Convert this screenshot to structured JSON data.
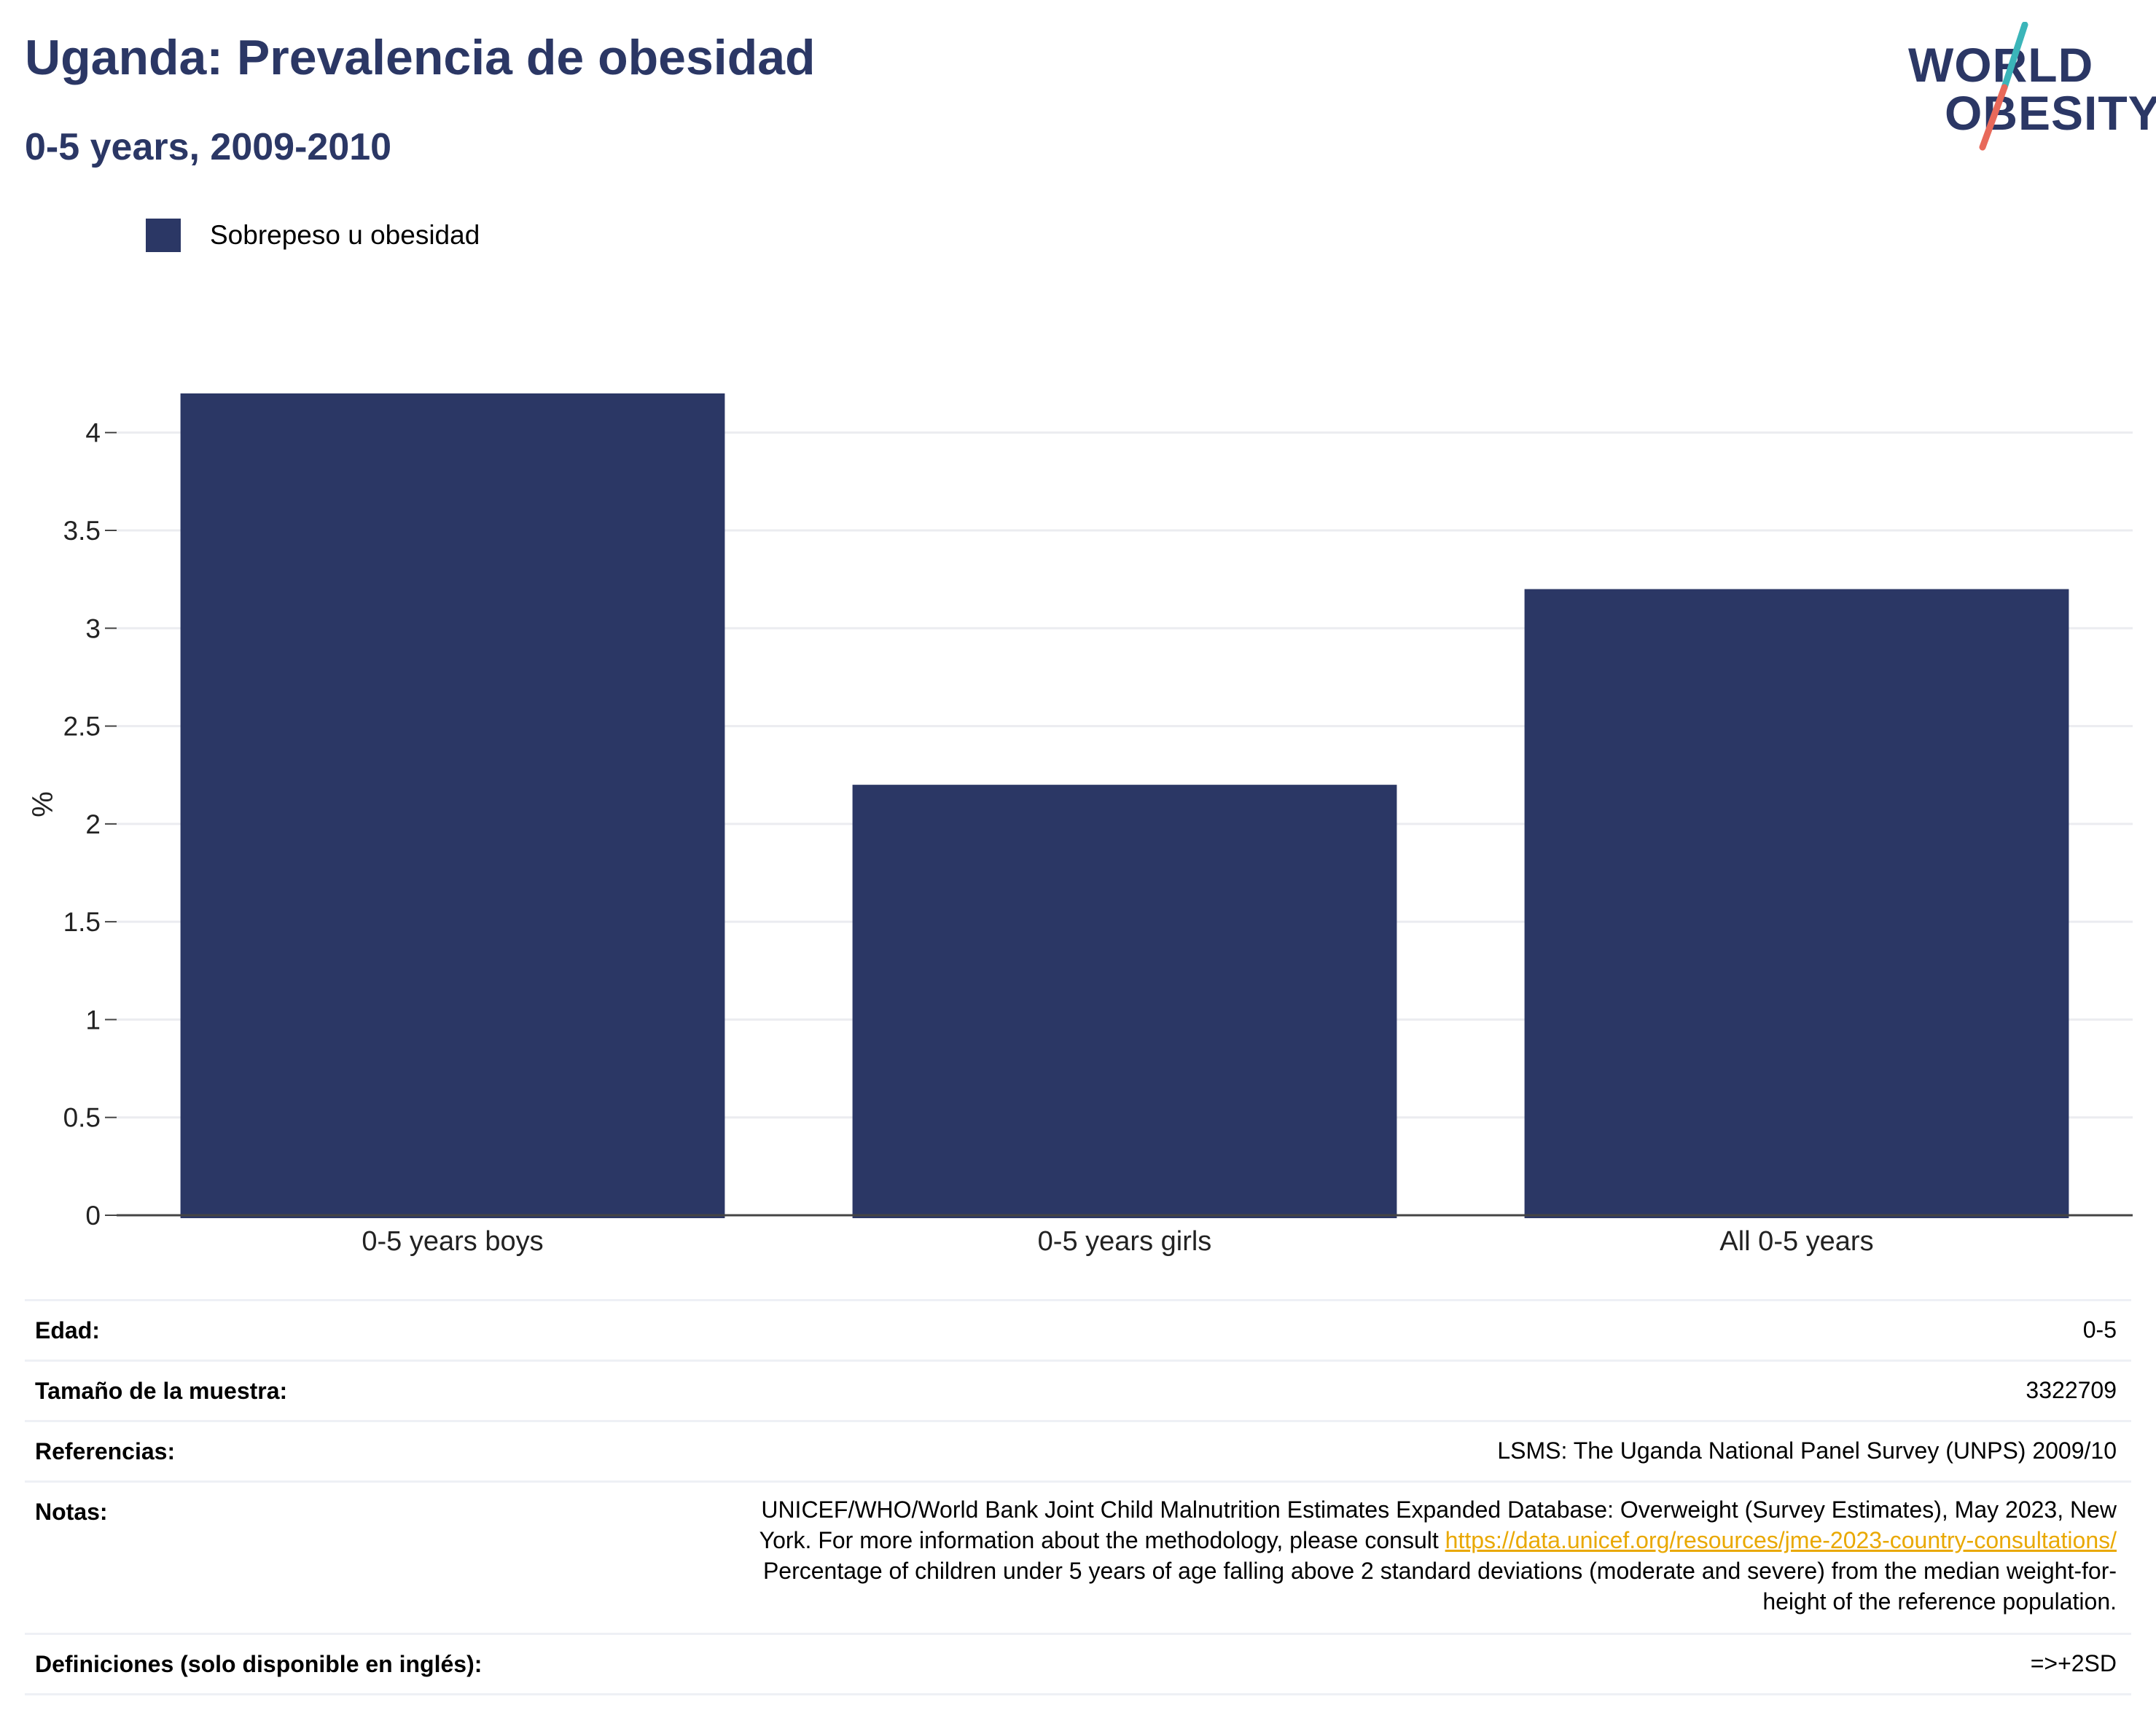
{
  "header": {
    "title": "Uganda: Prevalencia de obesidad",
    "subtitle": "0-5 years, 2009-2010"
  },
  "logo": {
    "line1": "WORLD",
    "line2": "OBESITY",
    "slash_colors": [
      "#3bb5b9",
      "#e8695a"
    ]
  },
  "legend": {
    "items": [
      {
        "label": "Sobrepeso u obesidad",
        "color": "#2b3765"
      }
    ]
  },
  "chart_data": {
    "type": "bar",
    "categories": [
      "0-5 years boys",
      "0-5 years girls",
      "All 0-5 years"
    ],
    "series": [
      {
        "name": "Sobrepeso u obesidad",
        "values": [
          4.2,
          2.2,
          3.2
        ],
        "color": "#2b3765"
      }
    ],
    "ylabel": "%",
    "xlabel": "",
    "ylim": [
      0,
      4.2
    ],
    "yticks": [
      0,
      0.5,
      1,
      1.5,
      2,
      2.5,
      3,
      3.5,
      4
    ],
    "grid": true,
    "legend_position": "top-left"
  },
  "info": {
    "age": {
      "label": "Edad:",
      "value": "0-5"
    },
    "sample": {
      "label": "Tamaño de la muestra:",
      "value": "3322709"
    },
    "refs": {
      "label": "Referencias:",
      "value": "LSMS: The Uganda National Panel Survey (UNPS) 2009/10"
    },
    "notes": {
      "label": "Notas:",
      "line1": "UNICEF/WHO/World Bank Joint Child Malnutrition Estimates Expanded Database: Overweight (Survey Estimates), May 2023, New",
      "line2_prefix": "York. For more information about the methodology, please consult ",
      "line2_link": "https://data.unicef.org/resources/jme-2023-country-consultations/",
      "line3": "Percentage of children under 5 years of age falling above 2 standard deviations (moderate and severe) from the median weight-for-",
      "line4": "height of the reference population."
    },
    "defs": {
      "label": "Definiciones (solo disponible en inglés):",
      "value": "=>+2SD"
    }
  }
}
